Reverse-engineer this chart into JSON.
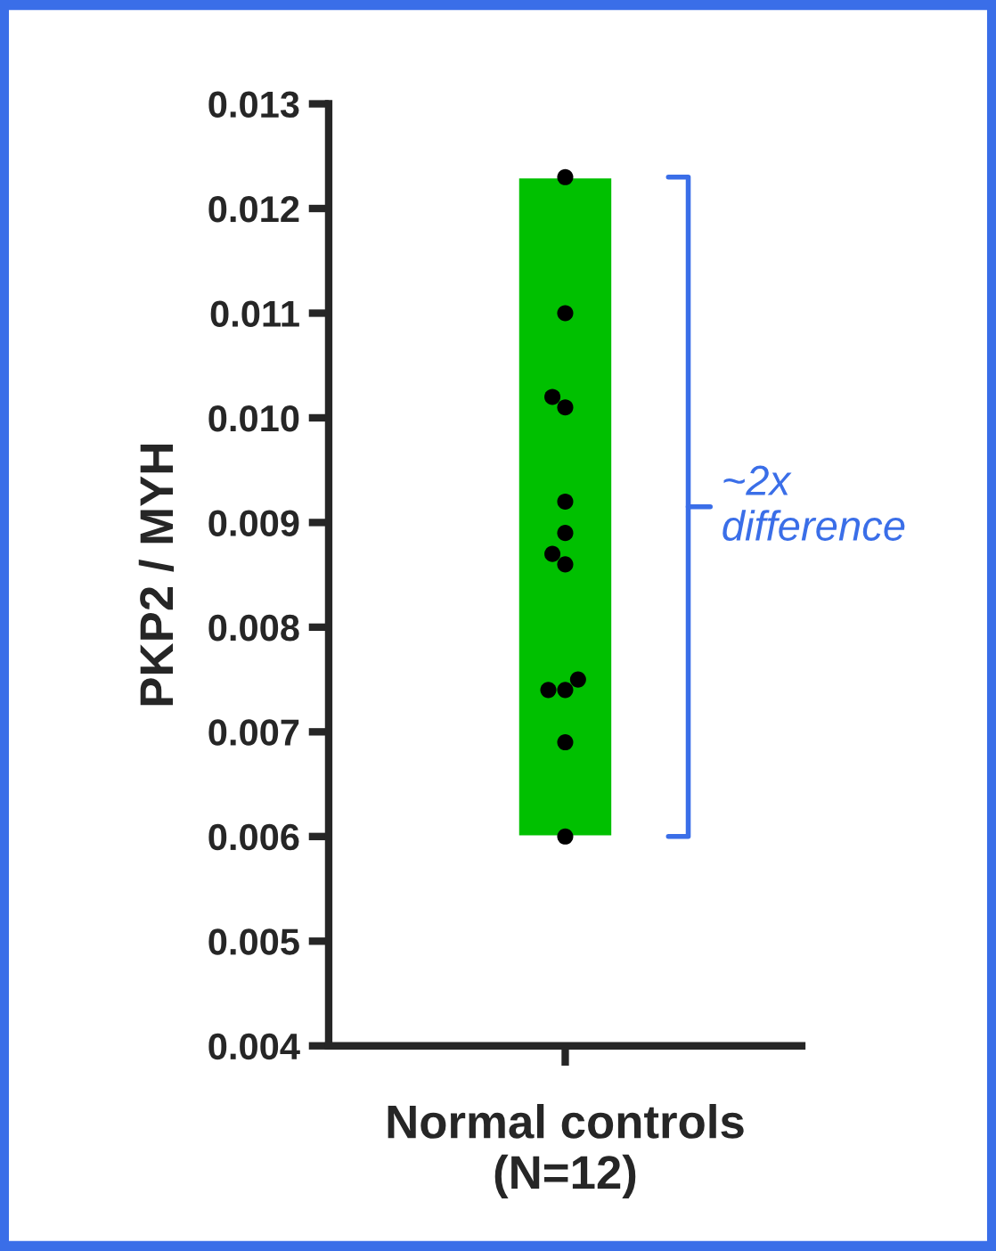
{
  "chart_data": {
    "type": "bar",
    "xlabel": "Normal controls\n(N=12)",
    "ylabel": "PKP2 / MYH",
    "categories": [
      null
    ],
    "series": [
      {
        "color": "#00c000",
        "base": [
          0.006
        ],
        "values": [
          0.0063
        ]
      },
      {
        "type": "scatter",
        "color": "#000000",
        "x": [
          null,
          null,
          null,
          null,
          null,
          null,
          null,
          null,
          null,
          null,
          null,
          null,
          null
        ],
        "values": [
          0.0123,
          0.011,
          0.0102,
          0.0101,
          0.0092,
          0.0089,
          0.0087,
          0.0086,
          0.0075,
          0.0074,
          0.0074,
          0.0069,
          0.006
        ]
      }
    ],
    "ylim": [
      0.004,
      0.013
    ],
    "yticks": [
      0.004,
      0.005,
      0.006,
      0.007,
      0.008,
      0.009,
      {
        "value": 0.01,
        "label": "0.010"
      },
      0.011,
      0.012,
      0.013
    ],
    "annotations": [
      "~2x\ndifference"
    ],
    "marker": "circle",
    "grid": false,
    "legend": false
  }
}
